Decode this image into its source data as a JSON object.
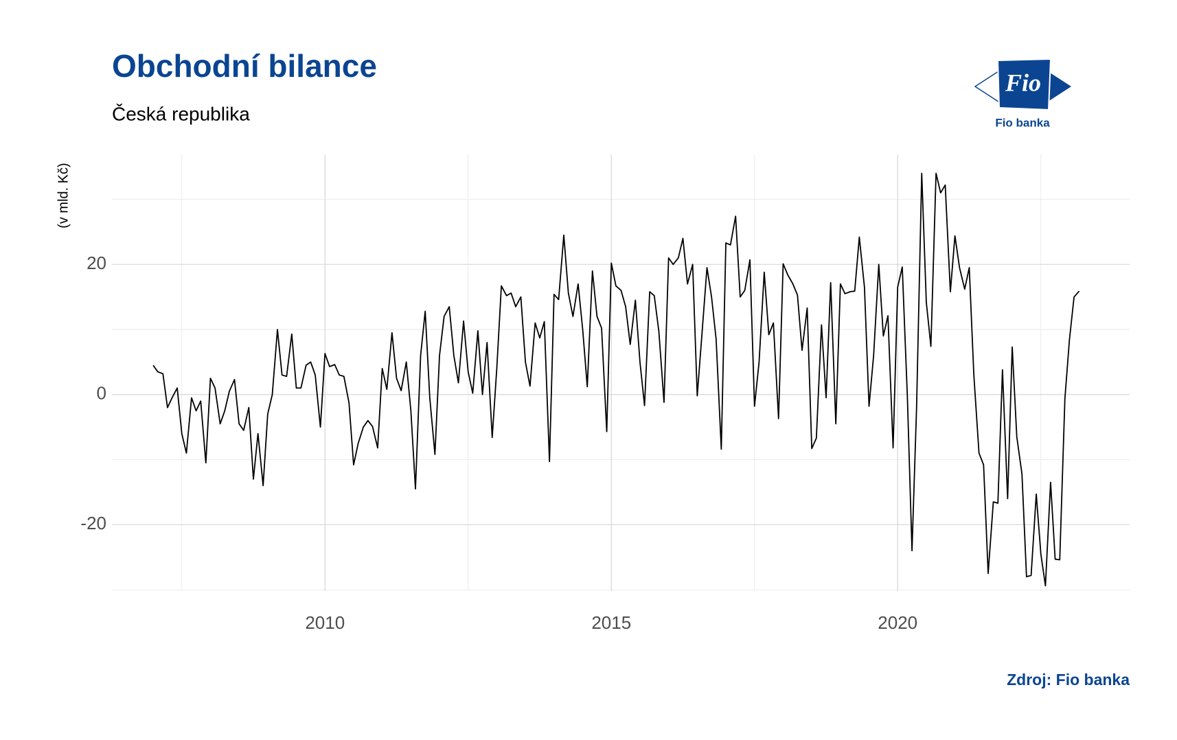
{
  "chart_data": {
    "type": "line",
    "title": "Obchodní bilance",
    "subtitle": "Česká republika",
    "ylabel": "(v mld. Kč)",
    "source": "Zdroj: Fio banka",
    "logo_text": "Fio",
    "logo_caption": "Fio banka",
    "color": "#000000",
    "grid": true,
    "xlim": [
      2006.28,
      2024.05
    ],
    "ylim": [
      -30.2,
      36.9
    ],
    "xticks": [
      2010,
      2015,
      2020
    ],
    "yticks": [
      -20,
      0,
      20
    ],
    "xminor": [
      2007.5,
      2012.5,
      2017.5,
      2022.5
    ],
    "yminor": [
      -30,
      -10,
      10,
      30
    ],
    "x": [
      2007.0,
      2007.08,
      2007.17,
      2007.25,
      2007.33,
      2007.42,
      2007.5,
      2007.58,
      2007.67,
      2007.75,
      2007.83,
      2007.92,
      2008.0,
      2008.08,
      2008.17,
      2008.25,
      2008.33,
      2008.42,
      2008.5,
      2008.58,
      2008.67,
      2008.75,
      2008.83,
      2008.92,
      2009.0,
      2009.08,
      2009.17,
      2009.25,
      2009.33,
      2009.42,
      2009.5,
      2009.58,
      2009.67,
      2009.75,
      2009.83,
      2009.92,
      2010.0,
      2010.08,
      2010.17,
      2010.25,
      2010.33,
      2010.42,
      2010.5,
      2010.58,
      2010.67,
      2010.75,
      2010.83,
      2010.92,
      2011.0,
      2011.08,
      2011.17,
      2011.25,
      2011.33,
      2011.42,
      2011.5,
      2011.58,
      2011.67,
      2011.75,
      2011.83,
      2011.92,
      2012.0,
      2012.08,
      2012.17,
      2012.25,
      2012.33,
      2012.42,
      2012.5,
      2012.58,
      2012.67,
      2012.75,
      2012.83,
      2012.92,
      2013.0,
      2013.08,
      2013.17,
      2013.25,
      2013.33,
      2013.42,
      2013.5,
      2013.58,
      2013.67,
      2013.75,
      2013.83,
      2013.92,
      2014.0,
      2014.08,
      2014.17,
      2014.25,
      2014.33,
      2014.42,
      2014.5,
      2014.58,
      2014.67,
      2014.75,
      2014.83,
      2014.92,
      2015.0,
      2015.08,
      2015.17,
      2015.25,
      2015.33,
      2015.42,
      2015.5,
      2015.58,
      2015.67,
      2015.75,
      2015.83,
      2015.92,
      2016.0,
      2016.08,
      2016.17,
      2016.25,
      2016.33,
      2016.42,
      2016.5,
      2016.58,
      2016.67,
      2016.75,
      2016.83,
      2016.92,
      2017.0,
      2017.08,
      2017.17,
      2017.25,
      2017.33,
      2017.42,
      2017.5,
      2017.58,
      2017.67,
      2017.75,
      2017.83,
      2017.92,
      2018.0,
      2018.08,
      2018.17,
      2018.25,
      2018.33,
      2018.42,
      2018.5,
      2018.58,
      2018.67,
      2018.75,
      2018.83,
      2018.92,
      2019.0,
      2019.08,
      2019.17,
      2019.25,
      2019.33,
      2019.42,
      2019.5,
      2019.58,
      2019.67,
      2019.75,
      2019.83,
      2019.92,
      2020.0,
      2020.08,
      2020.17,
      2020.25,
      2020.33,
      2020.42,
      2020.5,
      2020.58,
      2020.67,
      2020.75,
      2020.83,
      2020.92,
      2021.0,
      2021.08,
      2021.17,
      2021.25,
      2021.33,
      2021.42,
      2021.5,
      2021.58,
      2021.67,
      2021.75,
      2021.83,
      2021.92,
      2022.0,
      2022.08,
      2022.17,
      2022.25,
      2022.33,
      2022.42,
      2022.5,
      2022.58,
      2022.67,
      2022.75,
      2022.83,
      2022.92,
      2023.0,
      2023.08,
      2023.17
    ],
    "values": [
      4.5,
      3.5,
      3.2,
      -2,
      -0.5,
      1,
      -6,
      -9,
      -0.5,
      -2.5,
      -1,
      -10.5,
      2.5,
      1,
      -4.5,
      -2.5,
      0.5,
      2.3,
      -4.5,
      -5.5,
      -2,
      -13,
      -6,
      -14,
      -3,
      0,
      10,
      3,
      2.8,
      9.3,
      1,
      1,
      4.5,
      5,
      3,
      -5,
      6.3,
      4.3,
      4.6,
      3,
      2.8,
      -1.3,
      -10.8,
      -7.5,
      -5,
      -4,
      -4.9,
      -8.2,
      4,
      0.8,
      9.5,
      2.5,
      0.6,
      5,
      -2.5,
      -14.5,
      6,
      12.8,
      -0.5,
      -9.2,
      6,
      12,
      13.5,
      6,
      1.8,
      11.3,
      3.5,
      0.2,
      9.8,
      0,
      8,
      -6.6,
      4,
      16.7,
      15.2,
      15.6,
      13.5,
      15,
      5,
      1.3,
      11,
      8.7,
      11.2,
      -10.3,
      15.4,
      14.6,
      24.5,
      15.6,
      12,
      17,
      10,
      1.2,
      19,
      12,
      10.2,
      -5.7,
      20.2,
      16.7,
      16,
      13.5,
      7.7,
      14.5,
      5,
      -1.7,
      15.8,
      15.2,
      9.7,
      -1.2,
      21,
      20,
      21,
      24,
      17,
      20,
      -0.2,
      9,
      19.5,
      15,
      8.5,
      -8.4,
      23.3,
      23,
      27.4,
      15,
      16,
      20.7,
      -1.8,
      5,
      18.8,
      9.2,
      11,
      -3.7,
      20.1,
      18.4,
      17,
      15.3,
      6.8,
      13.3,
      -8.3,
      -6.7,
      10.7,
      -0.5,
      17.2,
      -4.5,
      17,
      15.5,
      15.8,
      15.9,
      24.2,
      16.5,
      -1.8,
      6,
      20,
      9,
      12.1,
      -8.2,
      16.5,
      19.6,
      -0.5,
      -24,
      -2,
      34,
      14.2,
      7.4,
      34,
      31,
      32.2,
      15.8,
      24.4,
      19.5,
      16.2,
      19.5,
      3,
      -9,
      -10.8,
      -27.5,
      -16.5,
      -16.7,
      3.8,
      -16,
      7.3,
      -6.5,
      -12.2,
      -28,
      -27.8,
      -15.3,
      -24.5,
      -29.4,
      -13.5,
      -25.3,
      -25.4,
      -0.6,
      8.5,
      15,
      15.9
    ]
  }
}
